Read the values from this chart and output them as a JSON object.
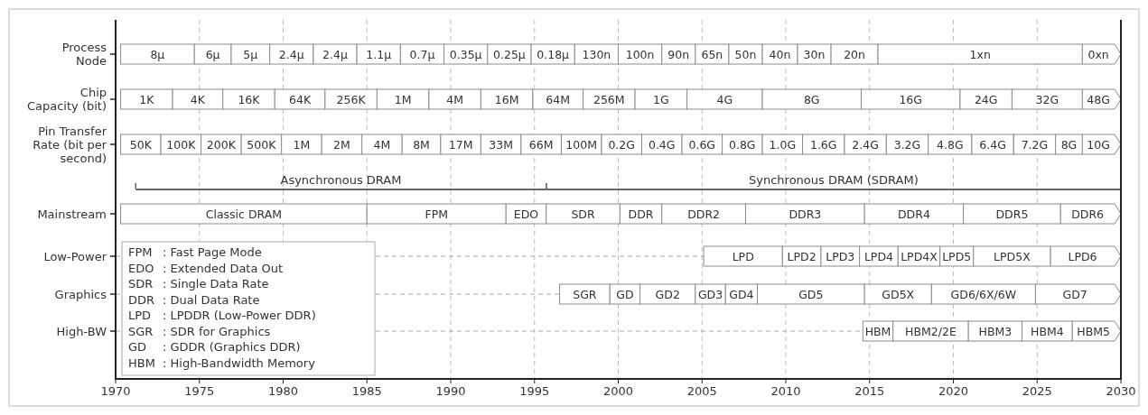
{
  "chart_data": {
    "type": "bar",
    "orientation": "horizontal",
    "categories": [
      "Process\nNode",
      "Chip\nCapacity (bit)",
      "Pin Transfer\nRate (bit per\nsecond)",
      null,
      "Mainstream",
      "Low-Power",
      "Graphics",
      "High-BW"
    ],
    "xlim": [
      1970,
      2030
    ],
    "xticks": [
      1970,
      1975,
      1980,
      1985,
      1990,
      1995,
      2000,
      2005,
      2010,
      2015,
      2020,
      2025,
      2030
    ],
    "grid": "x",
    "annotations": [
      "FPM : Fast Page Mode",
      "EDO : Extended Data Out",
      "SDR : Single Data Rate",
      "DDR : Dual Data Rate",
      "LPD : LPDDR (Low-Power DDR)",
      "SGR : SDR for Graphics",
      "GD : GDDR (Graphics DDR)",
      "HBM : High-Bandwidth Memory"
    ],
    "series": [
      {
        "name": "8μ",
        "base": [
          1970.3,
          null,
          null,
          null,
          null,
          null,
          null,
          null
        ],
        "values": [
          4.4,
          null,
          null,
          null,
          null,
          null,
          null,
          null
        ]
      },
      {
        "name": "6μ",
        "base": [
          1974.7,
          null,
          null,
          null,
          null,
          null,
          null,
          null
        ],
        "values": [
          2.2,
          null,
          null,
          null,
          null,
          null,
          null,
          null
        ]
      },
      {
        "name": "5μ",
        "base": [
          1976.9,
          null,
          null,
          null,
          null,
          null,
          null,
          null
        ],
        "values": [
          2.3,
          null,
          null,
          null,
          null,
          null,
          null,
          null
        ]
      },
      {
        "name": "2.4μ",
        "base": [
          1979.2,
          null,
          null,
          null,
          null,
          null,
          null,
          null
        ],
        "values": [
          2.6,
          null,
          null,
          null,
          null,
          null,
          null,
          null
        ]
      },
      {
        "name": "2.4μ",
        "base": [
          1981.8,
          null,
          null,
          null,
          null,
          null,
          null,
          null
        ],
        "values": [
          2.6,
          null,
          null,
          null,
          null,
          null,
          null,
          null
        ]
      },
      {
        "name": "1.1μ",
        "base": [
          1984.4,
          null,
          null,
          null,
          null,
          null,
          null,
          null
        ],
        "values": [
          2.6,
          null,
          null,
          null,
          null,
          null,
          null,
          null
        ]
      },
      {
        "name": "0.7μ",
        "base": [
          1987.0,
          null,
          null,
          null,
          null,
          null,
          null,
          null
        ],
        "values": [
          2.6,
          null,
          null,
          null,
          null,
          null,
          null,
          null
        ]
      },
      {
        "name": "0.35μ",
        "base": [
          1989.6,
          null,
          null,
          null,
          null,
          null,
          null,
          null
        ],
        "values": [
          2.6,
          null,
          null,
          null,
          null,
          null,
          null,
          null
        ]
      },
      {
        "name": "0.25μ",
        "base": [
          1992.2,
          null,
          null,
          null,
          null,
          null,
          null,
          null
        ],
        "values": [
          2.6,
          null,
          null,
          null,
          null,
          null,
          null,
          null
        ]
      },
      {
        "name": "0.18μ",
        "base": [
          1994.8,
          null,
          null,
          null,
          null,
          null,
          null,
          null
        ],
        "values": [
          2.6,
          null,
          null,
          null,
          null,
          null,
          null,
          null
        ]
      },
      {
        "name": "130n",
        "base": [
          1997.4,
          null,
          null,
          null,
          null,
          null,
          null,
          null
        ],
        "values": [
          2.6,
          null,
          null,
          null,
          null,
          null,
          null,
          null
        ]
      },
      {
        "name": "100n",
        "base": [
          2000.0,
          null,
          null,
          null,
          null,
          null,
          null,
          null
        ],
        "values": [
          2.6,
          null,
          null,
          null,
          null,
          null,
          null,
          null
        ]
      },
      {
        "name": "90n",
        "base": [
          2002.6,
          null,
          null,
          null,
          null,
          null,
          null,
          null
        ],
        "values": [
          2.0,
          null,
          null,
          null,
          null,
          null,
          null,
          null
        ]
      },
      {
        "name": "65n",
        "base": [
          2004.6,
          null,
          null,
          null,
          null,
          null,
          null,
          null
        ],
        "values": [
          2.0,
          null,
          null,
          null,
          null,
          null,
          null,
          null
        ]
      },
      {
        "name": "50n",
        "base": [
          2006.6,
          null,
          null,
          null,
          null,
          null,
          null,
          null
        ],
        "values": [
          2.0,
          null,
          null,
          null,
          null,
          null,
          null,
          null
        ]
      },
      {
        "name": "40n",
        "base": [
          2008.6,
          null,
          null,
          null,
          null,
          null,
          null,
          null
        ],
        "values": [
          2.1,
          null,
          null,
          null,
          null,
          null,
          null,
          null
        ]
      },
      {
        "name": "30n",
        "base": [
          2010.7,
          null,
          null,
          null,
          null,
          null,
          null,
          null
        ],
        "values": [
          2.0,
          null,
          null,
          null,
          null,
          null,
          null,
          null
        ]
      },
      {
        "name": "20n",
        "base": [
          2012.7,
          null,
          null,
          null,
          null,
          null,
          null,
          null
        ],
        "values": [
          2.8,
          null,
          null,
          null,
          null,
          null,
          null,
          null
        ]
      },
      {
        "name": "1xn",
        "base": [
          2015.5,
          null,
          null,
          null,
          null,
          null,
          null,
          null
        ],
        "values": [
          12.2,
          null,
          null,
          null,
          null,
          null,
          null,
          null
        ]
      },
      {
        "name": "0xn",
        "base": [
          2027.7,
          null,
          null,
          null,
          null,
          null,
          null,
          null
        ],
        "values": [
          2.3,
          null,
          null,
          null,
          null,
          null,
          null,
          null
        ]
      },
      {
        "name": "1K",
        "base": [
          null,
          1970.3,
          null,
          null,
          null,
          null,
          null,
          null
        ],
        "values": [
          null,
          3.1,
          null,
          null,
          null,
          null,
          null,
          null
        ]
      },
      {
        "name": "4K",
        "base": [
          null,
          1973.4,
          null,
          null,
          null,
          null,
          null,
          null
        ],
        "values": [
          null,
          3.0,
          null,
          null,
          null,
          null,
          null,
          null
        ]
      },
      {
        "name": "16K",
        "base": [
          null,
          1976.4,
          null,
          null,
          null,
          null,
          null,
          null
        ],
        "values": [
          null,
          3.1,
          null,
          null,
          null,
          null,
          null,
          null
        ]
      },
      {
        "name": "64K",
        "base": [
          null,
          1979.5,
          null,
          null,
          null,
          null,
          null,
          null
        ],
        "values": [
          null,
          3.0,
          null,
          null,
          null,
          null,
          null,
          null
        ]
      },
      {
        "name": "256K",
        "base": [
          null,
          1982.5,
          null,
          null,
          null,
          null,
          null,
          null
        ],
        "values": [
          null,
          3.1,
          null,
          null,
          null,
          null,
          null,
          null
        ]
      },
      {
        "name": "1M",
        "base": [
          null,
          1985.6,
          null,
          null,
          null,
          null,
          null,
          null
        ],
        "values": [
          null,
          3.1,
          null,
          null,
          null,
          null,
          null,
          null
        ]
      },
      {
        "name": "4M",
        "base": [
          null,
          1988.7,
          null,
          null,
          null,
          null,
          null,
          null
        ],
        "values": [
          null,
          3.1,
          null,
          null,
          null,
          null,
          null,
          null
        ]
      },
      {
        "name": "16M",
        "base": [
          null,
          1991.8,
          null,
          null,
          null,
          null,
          null,
          null
        ],
        "values": [
          null,
          3.1,
          null,
          null,
          null,
          null,
          null,
          null
        ]
      },
      {
        "name": "64M",
        "base": [
          null,
          1994.9,
          null,
          null,
          null,
          null,
          null,
          null
        ],
        "values": [
          null,
          3.0,
          null,
          null,
          null,
          null,
          null,
          null
        ]
      },
      {
        "name": "256M",
        "base": [
          null,
          1997.9,
          null,
          null,
          null,
          null,
          null,
          null
        ],
        "values": [
          null,
          3.1,
          null,
          null,
          null,
          null,
          null,
          null
        ]
      },
      {
        "name": "1G",
        "base": [
          null,
          2001.0,
          null,
          null,
          null,
          null,
          null,
          null
        ],
        "values": [
          null,
          3.1,
          null,
          null,
          null,
          null,
          null,
          null
        ]
      },
      {
        "name": "4G",
        "base": [
          null,
          2004.1,
          null,
          null,
          null,
          null,
          null,
          null
        ],
        "values": [
          null,
          4.5,
          null,
          null,
          null,
          null,
          null,
          null
        ]
      },
      {
        "name": "8G",
        "base": [
          null,
          2008.6,
          null,
          null,
          null,
          null,
          null,
          null
        ],
        "values": [
          null,
          5.9,
          null,
          null,
          null,
          null,
          null,
          null
        ]
      },
      {
        "name": "16G",
        "base": [
          null,
          2014.5,
          null,
          null,
          null,
          null,
          null,
          null
        ],
        "values": [
          null,
          5.9,
          null,
          null,
          null,
          null,
          null,
          null
        ]
      },
      {
        "name": "24G",
        "base": [
          null,
          2020.4,
          null,
          null,
          null,
          null,
          null,
          null
        ],
        "values": [
          null,
          3.1,
          null,
          null,
          null,
          null,
          null,
          null
        ]
      },
      {
        "name": "32G",
        "base": [
          null,
          2023.5,
          null,
          null,
          null,
          null,
          null,
          null
        ],
        "values": [
          null,
          4.2,
          null,
          null,
          null,
          null,
          null,
          null
        ]
      },
      {
        "name": "48G",
        "base": [
          null,
          2027.7,
          null,
          null,
          null,
          null,
          null,
          null
        ],
        "values": [
          null,
          2.3,
          null,
          null,
          null,
          null,
          null,
          null
        ]
      },
      {
        "name": "50K",
        "base": [
          null,
          null,
          1970.3,
          null,
          null,
          null,
          null,
          null
        ],
        "values": [
          null,
          null,
          2.4,
          null,
          null,
          null,
          null,
          null
        ]
      },
      {
        "name": "100K",
        "base": [
          null,
          null,
          1972.7,
          null,
          null,
          null,
          null,
          null
        ],
        "values": [
          null,
          null,
          2.4,
          null,
          null,
          null,
          null,
          null
        ]
      },
      {
        "name": "200K",
        "base": [
          null,
          null,
          1975.1,
          null,
          null,
          null,
          null,
          null
        ],
        "values": [
          null,
          null,
          2.4,
          null,
          null,
          null,
          null,
          null
        ]
      },
      {
        "name": "500K",
        "base": [
          null,
          null,
          1977.5,
          null,
          null,
          null,
          null,
          null
        ],
        "values": [
          null,
          null,
          2.4,
          null,
          null,
          null,
          null,
          null
        ]
      },
      {
        "name": "1M",
        "base": [
          null,
          null,
          1979.9,
          null,
          null,
          null,
          null,
          null
        ],
        "values": [
          null,
          null,
          2.4,
          null,
          null,
          null,
          null,
          null
        ]
      },
      {
        "name": "2M",
        "base": [
          null,
          null,
          1982.3,
          null,
          null,
          null,
          null,
          null
        ],
        "values": [
          null,
          null,
          2.4,
          null,
          null,
          null,
          null,
          null
        ]
      },
      {
        "name": "4M",
        "base": [
          null,
          null,
          1984.7,
          null,
          null,
          null,
          null,
          null
        ],
        "values": [
          null,
          null,
          2.4,
          null,
          null,
          null,
          null,
          null
        ]
      },
      {
        "name": "8M",
        "base": [
          null,
          null,
          1987.1,
          null,
          null,
          null,
          null,
          null
        ],
        "values": [
          null,
          null,
          2.3,
          null,
          null,
          null,
          null,
          null
        ]
      },
      {
        "name": "17M",
        "base": [
          null,
          null,
          1989.4,
          null,
          null,
          null,
          null,
          null
        ],
        "values": [
          null,
          null,
          2.4,
          null,
          null,
          null,
          null,
          null
        ]
      },
      {
        "name": "33M",
        "base": [
          null,
          null,
          1991.8,
          null,
          null,
          null,
          null,
          null
        ],
        "values": [
          null,
          null,
          2.4,
          null,
          null,
          null,
          null,
          null
        ]
      },
      {
        "name": "66M",
        "base": [
          null,
          null,
          1994.2,
          null,
          null,
          null,
          null,
          null
        ],
        "values": [
          null,
          null,
          2.4,
          null,
          null,
          null,
          null,
          null
        ]
      },
      {
        "name": "100M",
        "base": [
          null,
          null,
          1996.6,
          null,
          null,
          null,
          null,
          null
        ],
        "values": [
          null,
          null,
          2.4,
          null,
          null,
          null,
          null,
          null
        ]
      },
      {
        "name": "0.2G",
        "base": [
          null,
          null,
          1999.0,
          null,
          null,
          null,
          null,
          null
        ],
        "values": [
          null,
          null,
          2.4,
          null,
          null,
          null,
          null,
          null
        ]
      },
      {
        "name": "0.4G",
        "base": [
          null,
          null,
          2001.4,
          null,
          null,
          null,
          null,
          null
        ],
        "values": [
          null,
          null,
          2.4,
          null,
          null,
          null,
          null,
          null
        ]
      },
      {
        "name": "0.6G",
        "base": [
          null,
          null,
          2003.8,
          null,
          null,
          null,
          null,
          null
        ],
        "values": [
          null,
          null,
          2.4,
          null,
          null,
          null,
          null,
          null
        ]
      },
      {
        "name": "0.8G",
        "base": [
          null,
          null,
          2006.2,
          null,
          null,
          null,
          null,
          null
        ],
        "values": [
          null,
          null,
          2.4,
          null,
          null,
          null,
          null,
          null
        ]
      },
      {
        "name": "1.0G",
        "base": [
          null,
          null,
          2008.6,
          null,
          null,
          null,
          null,
          null
        ],
        "values": [
          null,
          null,
          2.4,
          null,
          null,
          null,
          null,
          null
        ]
      },
      {
        "name": "1.6G",
        "base": [
          null,
          null,
          2011.0,
          null,
          null,
          null,
          null,
          null
        ],
        "values": [
          null,
          null,
          2.5,
          null,
          null,
          null,
          null,
          null
        ]
      },
      {
        "name": "2.4G",
        "base": [
          null,
          null,
          2013.5,
          null,
          null,
          null,
          null,
          null
        ],
        "values": [
          null,
          null,
          2.5,
          null,
          null,
          null,
          null,
          null
        ]
      },
      {
        "name": "3.2G",
        "base": [
          null,
          null,
          2016.0,
          null,
          null,
          null,
          null,
          null
        ],
        "values": [
          null,
          null,
          2.5,
          null,
          null,
          null,
          null,
          null
        ]
      },
      {
        "name": "4.8G",
        "base": [
          null,
          null,
          2018.5,
          null,
          null,
          null,
          null,
          null
        ],
        "values": [
          null,
          null,
          2.6,
          null,
          null,
          null,
          null,
          null
        ]
      },
      {
        "name": "6.4G",
        "base": [
          null,
          null,
          2021.1,
          null,
          null,
          null,
          null,
          null
        ],
        "values": [
          null,
          null,
          2.5,
          null,
          null,
          null,
          null,
          null
        ]
      },
      {
        "name": "7.2G",
        "base": [
          null,
          null,
          2023.6,
          null,
          null,
          null,
          null,
          null
        ],
        "values": [
          null,
          null,
          2.5,
          null,
          null,
          null,
          null,
          null
        ]
      },
      {
        "name": "8G",
        "base": [
          null,
          null,
          2026.1,
          null,
          null,
          null,
          null,
          null
        ],
        "values": [
          null,
          null,
          1.6,
          null,
          null,
          null,
          null,
          null
        ]
      },
      {
        "name": "10G",
        "base": [
          null,
          null,
          2027.7,
          null,
          null,
          null,
          null,
          null
        ],
        "values": [
          null,
          null,
          2.3,
          null,
          null,
          null,
          null,
          null
        ]
      },
      {
        "name": "Asynchronous DRAM",
        "color": "#666666",
        "base": [
          null,
          null,
          null,
          1971.2,
          null,
          null,
          null,
          null
        ],
        "values": [
          null,
          null,
          null,
          24.5,
          null,
          null,
          null,
          null
        ]
      },
      {
        "name": "Synchronous DRAM (SDRAM)",
        "color": "#666666",
        "base": [
          null,
          null,
          null,
          1995.7,
          null,
          null,
          null,
          null
        ],
        "values": [
          null,
          null,
          null,
          34.3,
          null,
          null,
          null,
          null
        ]
      },
      {
        "name": "Classic DRAM",
        "base": [
          null,
          null,
          null,
          null,
          1970.3,
          null,
          null,
          null
        ],
        "values": [
          null,
          null,
          null,
          null,
          14.7,
          null,
          null,
          null
        ]
      },
      {
        "name": "FPM",
        "base": [
          null,
          null,
          null,
          null,
          1985.0,
          null,
          null,
          null
        ],
        "values": [
          null,
          null,
          null,
          null,
          8.3,
          null,
          null,
          null
        ]
      },
      {
        "name": "EDO",
        "base": [
          null,
          null,
          null,
          null,
          1993.3,
          null,
          null,
          null
        ],
        "values": [
          null,
          null,
          null,
          null,
          2.4,
          null,
          null,
          null
        ]
      },
      {
        "name": "SDR",
        "base": [
          null,
          null,
          null,
          null,
          1995.7,
          null,
          null,
          null
        ],
        "values": [
          null,
          null,
          null,
          null,
          4.4,
          null,
          null,
          null
        ]
      },
      {
        "name": "DDR",
        "base": [
          null,
          null,
          null,
          null,
          2000.1,
          null,
          null,
          null
        ],
        "values": [
          null,
          null,
          null,
          null,
          2.5,
          null,
          null,
          null
        ]
      },
      {
        "name": "DDR2",
        "base": [
          null,
          null,
          null,
          null,
          2002.6,
          null,
          null,
          null
        ],
        "values": [
          null,
          null,
          null,
          null,
          5.0,
          null,
          null,
          null
        ]
      },
      {
        "name": "DDR3",
        "base": [
          null,
          null,
          null,
          null,
          2007.6,
          null,
          null,
          null
        ],
        "values": [
          null,
          null,
          null,
          null,
          7.1,
          null,
          null,
          null
        ]
      },
      {
        "name": "DDR4",
        "base": [
          null,
          null,
          null,
          null,
          2014.7,
          null,
          null,
          null
        ],
        "values": [
          null,
          null,
          null,
          null,
          5.9,
          null,
          null,
          null
        ]
      },
      {
        "name": "DDR5",
        "base": [
          null,
          null,
          null,
          null,
          2020.6,
          null,
          null,
          null
        ],
        "values": [
          null,
          null,
          null,
          null,
          5.8,
          null,
          null,
          null
        ]
      },
      {
        "name": "DDR6",
        "base": [
          null,
          null,
          null,
          null,
          2026.4,
          null,
          null,
          null
        ],
        "values": [
          null,
          null,
          null,
          null,
          3.6,
          null,
          null,
          null
        ]
      },
      {
        "name": "LPD",
        "base": [
          null,
          null,
          null,
          null,
          null,
          2005.1,
          null,
          null
        ],
        "values": [
          null,
          null,
          null,
          null,
          null,
          4.7,
          null,
          null
        ]
      },
      {
        "name": "LPD2",
        "base": [
          null,
          null,
          null,
          null,
          null,
          2009.8,
          null,
          null
        ],
        "values": [
          null,
          null,
          null,
          null,
          null,
          2.3,
          null,
          null
        ]
      },
      {
        "name": "LPD3",
        "base": [
          null,
          null,
          null,
          null,
          null,
          2012.1,
          null,
          null
        ],
        "values": [
          null,
          null,
          null,
          null,
          null,
          2.3,
          null,
          null
        ]
      },
      {
        "name": "LPD4",
        "base": [
          null,
          null,
          null,
          null,
          null,
          2014.4,
          null,
          null
        ],
        "values": [
          null,
          null,
          null,
          null,
          null,
          2.3,
          null,
          null
        ]
      },
      {
        "name": "LPD4X",
        "base": [
          null,
          null,
          null,
          null,
          null,
          2016.7,
          null,
          null
        ],
        "values": [
          null,
          null,
          null,
          null,
          null,
          2.5,
          null,
          null
        ]
      },
      {
        "name": "LPD5",
        "base": [
          null,
          null,
          null,
          null,
          null,
          2019.2,
          null,
          null
        ],
        "values": [
          null,
          null,
          null,
          null,
          null,
          2.0,
          null,
          null
        ]
      },
      {
        "name": "LPD5X",
        "base": [
          null,
          null,
          null,
          null,
          null,
          2021.2,
          null,
          null
        ],
        "values": [
          null,
          null,
          null,
          null,
          null,
          4.6,
          null,
          null
        ]
      },
      {
        "name": "LPD6",
        "base": [
          null,
          null,
          null,
          null,
          null,
          2025.8,
          null,
          null
        ],
        "values": [
          null,
          null,
          null,
          null,
          null,
          4.2,
          null,
          null
        ]
      },
      {
        "name": "SGR",
        "base": [
          null,
          null,
          null,
          null,
          null,
          null,
          1996.5,
          null
        ],
        "values": [
          null,
          null,
          null,
          null,
          null,
          null,
          3.0,
          null
        ]
      },
      {
        "name": "GD",
        "base": [
          null,
          null,
          null,
          null,
          null,
          null,
          1999.5,
          null
        ],
        "values": [
          null,
          null,
          null,
          null,
          null,
          null,
          1.8,
          null
        ]
      },
      {
        "name": "GD2",
        "base": [
          null,
          null,
          null,
          null,
          null,
          null,
          2001.3,
          null
        ],
        "values": [
          null,
          null,
          null,
          null,
          null,
          null,
          3.3,
          null
        ]
      },
      {
        "name": "GD3",
        "base": [
          null,
          null,
          null,
          null,
          null,
          null,
          2004.6,
          null
        ],
        "values": [
          null,
          null,
          null,
          null,
          null,
          null,
          1.8,
          null
        ]
      },
      {
        "name": "GD4",
        "base": [
          null,
          null,
          null,
          null,
          null,
          null,
          2006.4,
          null
        ],
        "values": [
          null,
          null,
          null,
          null,
          null,
          null,
          1.9,
          null
        ]
      },
      {
        "name": "GD5",
        "base": [
          null,
          null,
          null,
          null,
          null,
          null,
          2008.3,
          null
        ],
        "values": [
          null,
          null,
          null,
          null,
          null,
          null,
          6.4,
          null
        ]
      },
      {
        "name": "GD5X",
        "base": [
          null,
          null,
          null,
          null,
          null,
          null,
          2014.7,
          null
        ],
        "values": [
          null,
          null,
          null,
          null,
          null,
          null,
          4.0,
          null
        ]
      },
      {
        "name": "GD6/6X/6W",
        "base": [
          null,
          null,
          null,
          null,
          null,
          null,
          2018.7,
          null
        ],
        "values": [
          null,
          null,
          null,
          null,
          null,
          null,
          6.2,
          null
        ]
      },
      {
        "name": "GD7",
        "base": [
          null,
          null,
          null,
          null,
          null,
          null,
          2024.9,
          null
        ],
        "values": [
          null,
          null,
          null,
          null,
          null,
          null,
          5.1,
          null
        ]
      },
      {
        "name": "HBM",
        "base": [
          null,
          null,
          null,
          null,
          null,
          null,
          null,
          2014.6
        ],
        "values": [
          null,
          null,
          null,
          null,
          null,
          null,
          null,
          1.8
        ]
      },
      {
        "name": "HBM2/2E",
        "base": [
          null,
          null,
          null,
          null,
          null,
          null,
          null,
          2016.4
        ],
        "values": [
          null,
          null,
          null,
          null,
          null,
          null,
          null,
          4.5
        ]
      },
      {
        "name": "HBM3",
        "base": [
          null,
          null,
          null,
          null,
          null,
          null,
          null,
          2020.9
        ],
        "values": [
          null,
          null,
          null,
          null,
          null,
          null,
          null,
          3.2
        ]
      },
      {
        "name": "HBM4",
        "base": [
          null,
          null,
          null,
          null,
          null,
          null,
          null,
          2024.1
        ],
        "values": [
          null,
          null,
          null,
          null,
          null,
          null,
          null,
          3.0
        ]
      },
      {
        "name": "HBM5",
        "base": [
          null,
          null,
          null,
          null,
          null,
          null,
          null,
          2027.1
        ],
        "values": [
          null,
          null,
          null,
          null,
          null,
          null,
          null,
          2.9
        ]
      }
    ]
  }
}
